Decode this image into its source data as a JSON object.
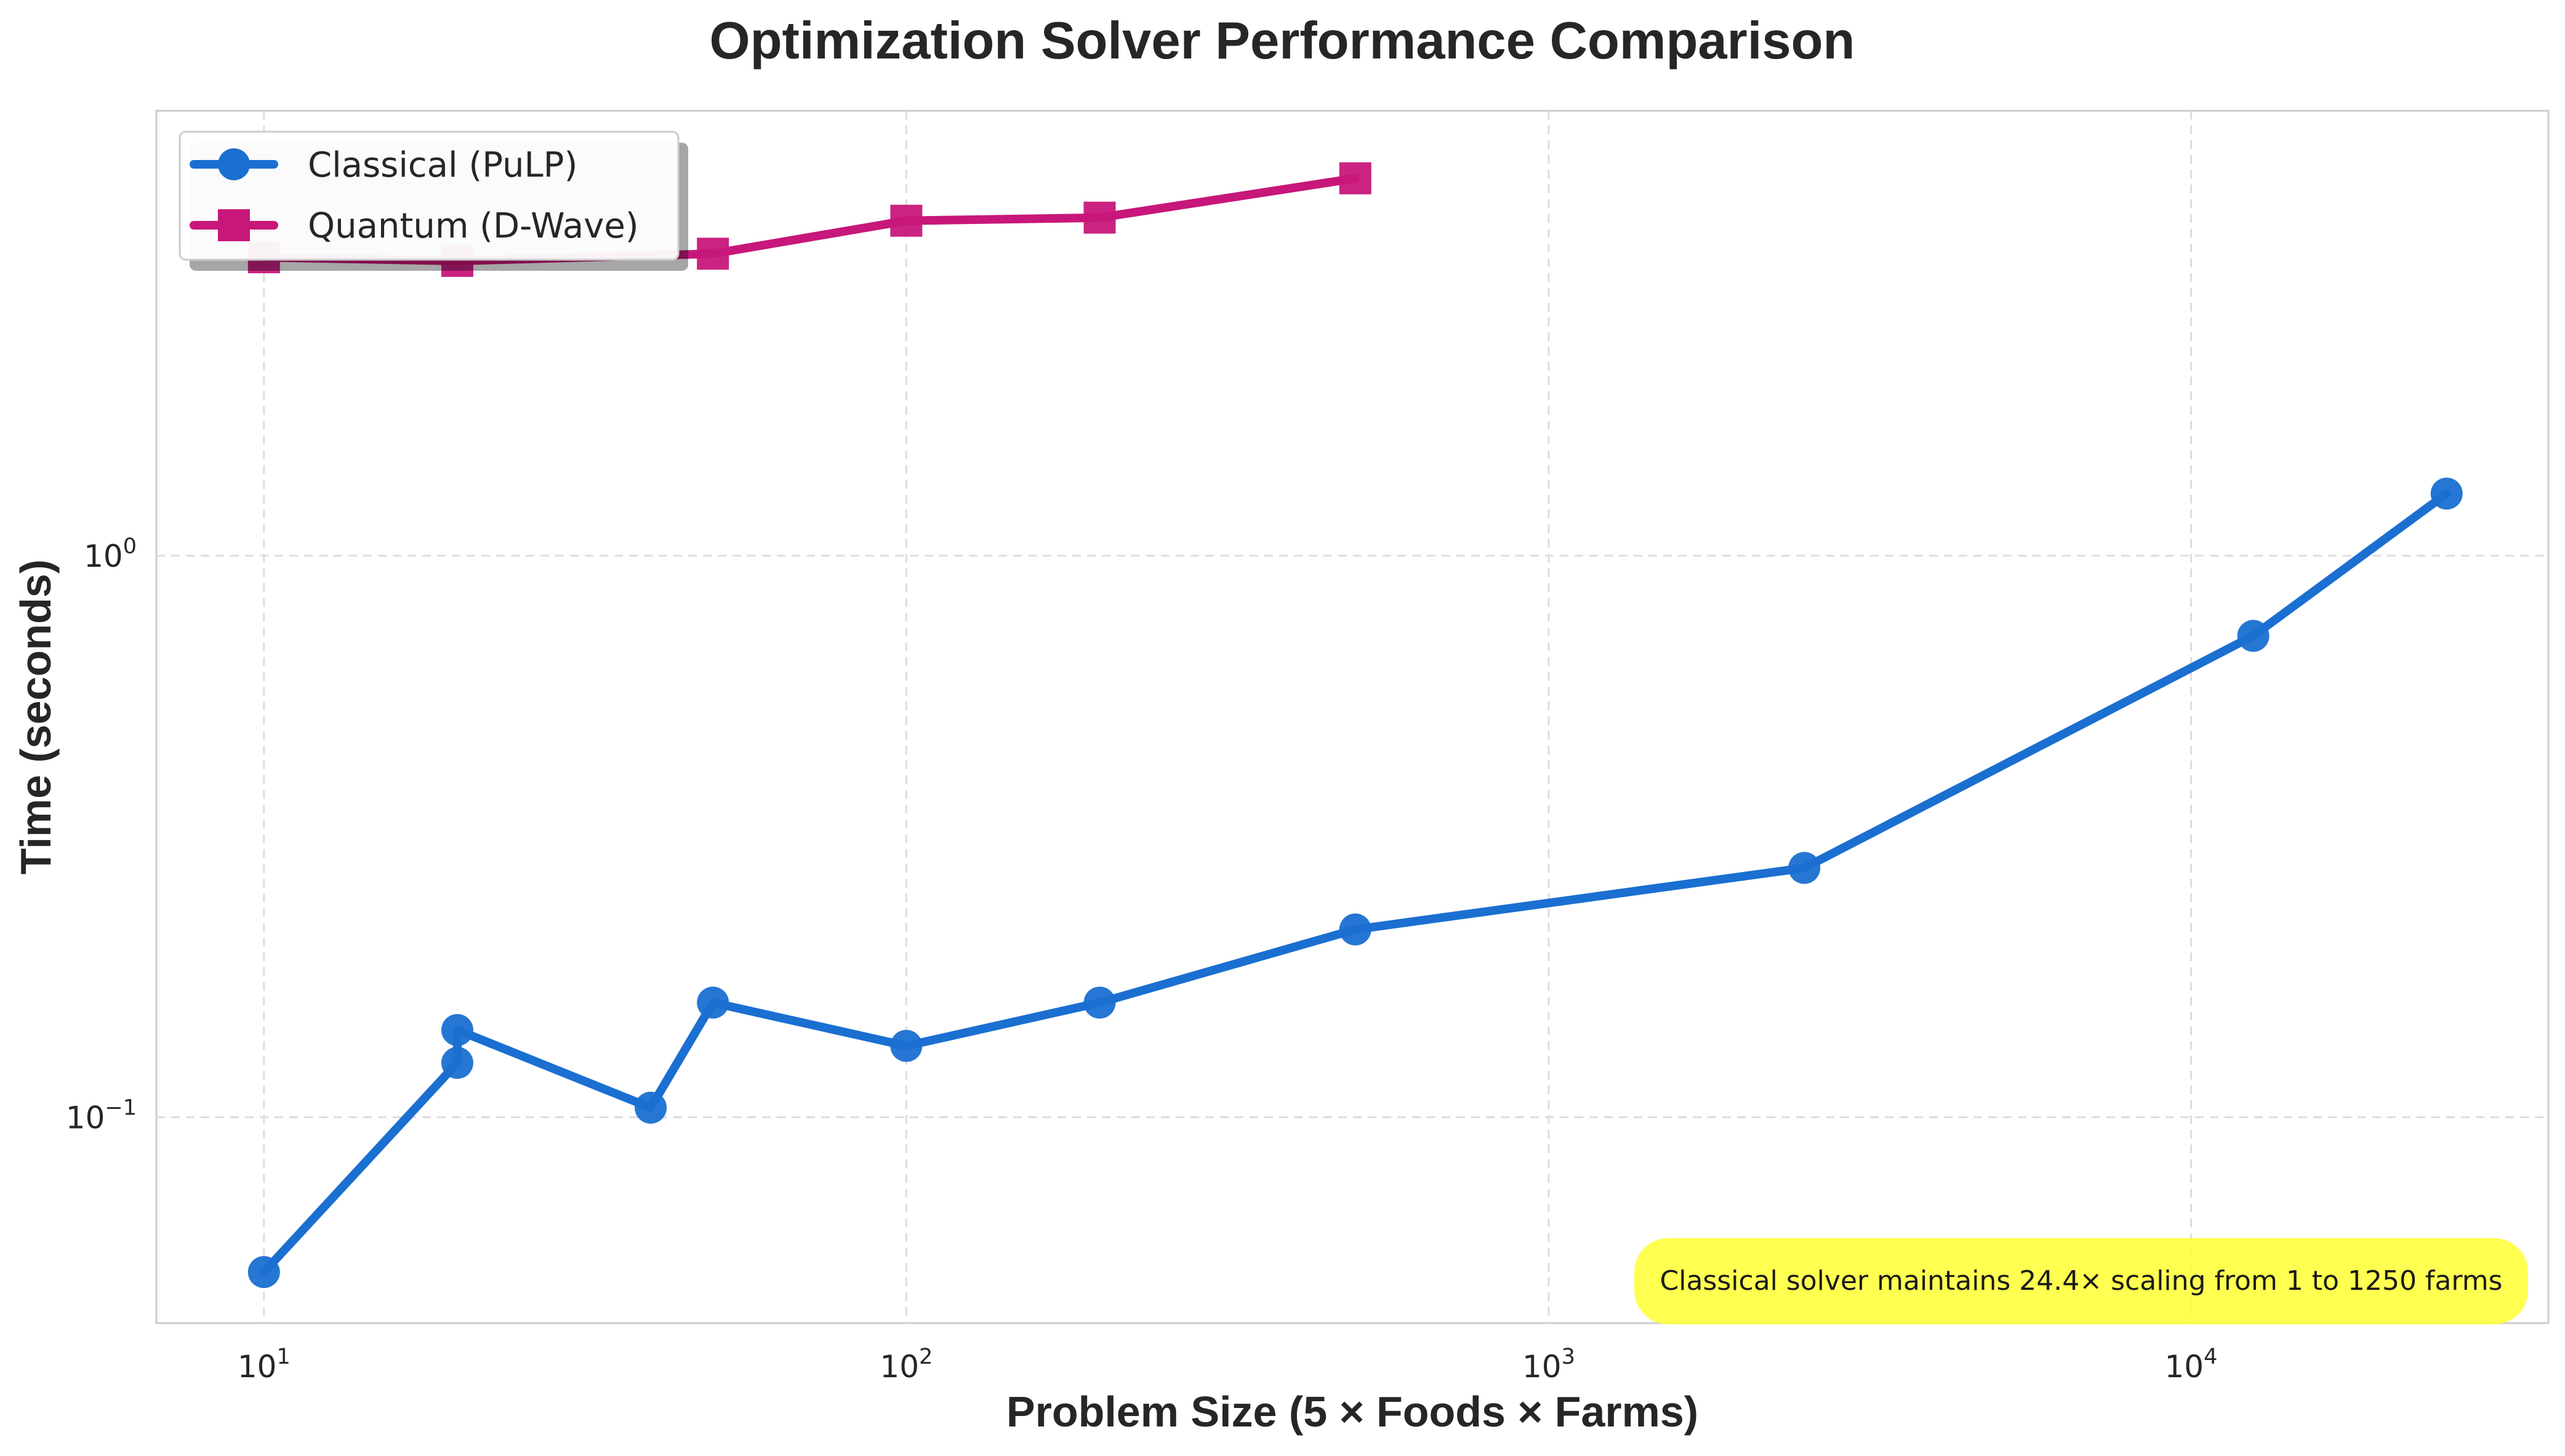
{
  "chart_data": {
    "type": "line",
    "title": "Optimization Solver Performance Comparison",
    "xlabel": "Problem Size (5 × Foods × Farms)",
    "ylabel": "Time (seconds)",
    "xscale": "log",
    "yscale": "log",
    "xlim": [
      6.8,
      36000
    ],
    "ylim": [
      0.043,
      6.2
    ],
    "grid": true,
    "legend_position": "top-left",
    "x_ticks": [
      {
        "value": 10,
        "base": "10",
        "exp": "1"
      },
      {
        "value": 100,
        "base": "10",
        "exp": "2"
      },
      {
        "value": 1000,
        "base": "10",
        "exp": "3"
      },
      {
        "value": 10000,
        "base": "10",
        "exp": "4"
      }
    ],
    "y_ticks": [
      {
        "value": 0.1,
        "base": "10",
        "exp": "−1"
      },
      {
        "value": 1,
        "base": "10",
        "exp": "0"
      }
    ],
    "series": [
      {
        "name": "Classical (PuLP)",
        "color": "#1a6fd1",
        "marker": "circle",
        "x": [
          10,
          20,
          20,
          40,
          50,
          100,
          200,
          500,
          2500,
          12500,
          25000
        ],
        "y": [
          0.053,
          0.125,
          0.143,
          0.104,
          0.16,
          0.134,
          0.16,
          0.216,
          0.278,
          0.72,
          1.29
        ]
      },
      {
        "name": "Quantum (D-Wave)",
        "color": "#c7177a",
        "marker": "square",
        "x": [
          10,
          20,
          50,
          100,
          200,
          500
        ],
        "y": [
          3.4,
          3.35,
          3.45,
          3.95,
          4.0,
          4.7
        ]
      }
    ],
    "annotation": {
      "text": "Classical solver maintains 24.4× scaling from 1 to 1250 farms",
      "background": "#ffff33"
    }
  }
}
